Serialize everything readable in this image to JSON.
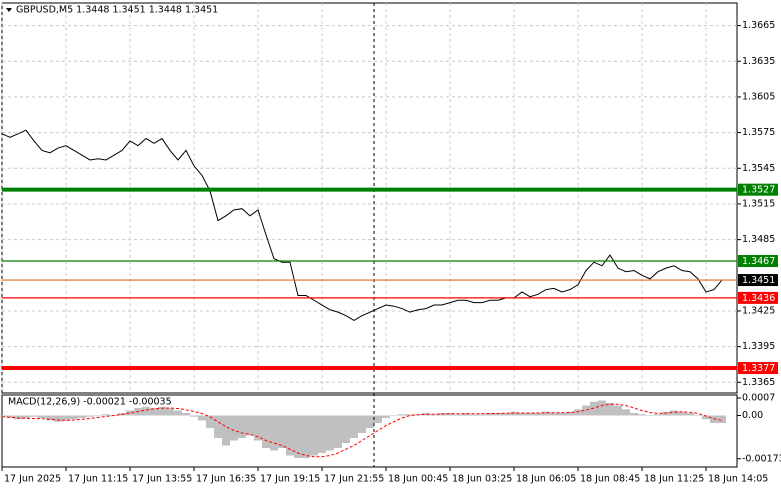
{
  "chart_data": [
    {
      "type": "line",
      "title": "GBPUSD,M5  1.3448 1.3451 1.3448 1.3451",
      "series": [
        {
          "color": "#000000",
          "values": [
            1.3574,
            1.3571,
            1.3574,
            1.3577,
            1.3568,
            1.356,
            1.3558,
            1.3562,
            1.3564,
            1.356,
            1.3556,
            1.3552,
            1.3553,
            1.3552,
            1.3556,
            1.356,
            1.3568,
            1.3564,
            1.357,
            1.3566,
            1.357,
            1.356,
            1.3552,
            1.356,
            1.3547,
            1.3539,
            1.3526,
            1.3501,
            1.3505,
            1.351,
            1.3511,
            1.3505,
            1.351,
            1.3489,
            1.3469,
            1.3466,
            1.3466,
            1.3438,
            1.3438,
            1.3434,
            1.343,
            1.3426,
            1.3424,
            1.3421,
            1.3417,
            1.3421,
            1.3424,
            1.3427,
            1.343,
            1.3429,
            1.3427,
            1.3424,
            1.3426,
            1.3427,
            1.343,
            1.343,
            1.3432,
            1.3434,
            1.3434,
            1.3432,
            1.3432,
            1.3434,
            1.3434,
            1.3436,
            1.3436,
            1.3441,
            1.3437,
            1.3439,
            1.3443,
            1.3444,
            1.3441,
            1.3443,
            1.3447,
            1.3459,
            1.3466,
            1.3463,
            1.3472,
            1.3461,
            1.3458,
            1.3459,
            1.3455,
            1.3452,
            1.3458,
            1.3461,
            1.3463,
            1.3459,
            1.3458,
            1.3452,
            1.3441,
            1.3443,
            1.3451
          ]
        }
      ],
      "levels": [
        {
          "value": 1.3527,
          "color": "#008000",
          "bold": true
        },
        {
          "value": 1.3467,
          "color": "#008000",
          "bold": false
        },
        {
          "value": 1.3451,
          "color": "#e07020",
          "label_color": "#000000",
          "bold": false
        },
        {
          "value": 1.3436,
          "color": "#ff0000",
          "bold": false
        },
        {
          "value": 1.3377,
          "color": "#ff0000",
          "bold": true
        }
      ],
      "xlim": [
        0,
        91.875
      ],
      "xticks": [
        {
          "value": 0,
          "label": "17 Jun 2025"
        },
        {
          "value": 8,
          "label": "17 Jun 11:15"
        },
        {
          "value": 16,
          "label": "17 Jun 13:55"
        },
        {
          "value": 24,
          "label": "17 Jun 16:35"
        },
        {
          "value": 32,
          "label": "17 Jun 19:15"
        },
        {
          "value": 40,
          "label": "17 Jun 21:55"
        },
        {
          "value": 48,
          "label": "18 Jun 00:45"
        },
        {
          "value": 56,
          "label": "18 Jun 03:25"
        },
        {
          "value": 64,
          "label": "18 Jun 06:05"
        },
        {
          "value": 72,
          "label": "18 Jun 08:45"
        },
        {
          "value": 80,
          "label": "18 Jun 11:25"
        },
        {
          "value": 88,
          "label": "18 Jun 14:05"
        }
      ],
      "ylim": [
        1.3356,
        1.3684
      ],
      "yticks": [
        1.3665,
        1.3635,
        1.3605,
        1.3575,
        1.3545,
        1.3515,
        1.3485,
        1.3425,
        1.3395,
        1.3365
      ],
      "grid": true
    },
    {
      "type": "macd",
      "title": "MACD(12,26,9) -0.00021 -0.00035",
      "series": [
        {
          "color": "#c0c0c0",
          "values": [
            -5e-05,
            -0.0001,
            -0.00015,
            -0.0001,
            -5e-05,
            -0.0001,
            -0.0002,
            -0.00025,
            -0.0002,
            -0.00015,
            -0.0001,
            -5e-05,
            0,
            5e-05,
            0,
            0.0001,
            0.0002,
            0.0003,
            0.00035,
            0.0003,
            0.00035,
            0.0003,
            0.0002,
            0.0001,
            -5e-05,
            -0.0002,
            -0.0005,
            -0.0009,
            -0.0012,
            -0.001,
            -0.0009,
            -0.0008,
            -0.001,
            -0.0013,
            -0.0014,
            -0.0013,
            -0.0016,
            -0.0017,
            -0.0017,
            -0.0016,
            -0.0015,
            -0.0014,
            -0.0013,
            -0.0011,
            -0.0009,
            -0.0007,
            -0.0005,
            -0.0003,
            -0.0001,
            0,
            5e-05,
            5e-05,
            5e-05,
            0.0001,
            5e-05,
            0.0001,
            0.0001,
            5e-05,
            0.0001,
            5e-05,
            5e-05,
            0.0001,
            0.0001,
            0.0001,
            0.00015,
            0.0001,
            0.0001,
            0.0001,
            0.00015,
            0.0001,
            0.0001,
            0.00015,
            0.00025,
            0.0004,
            0.00055,
            0.0006,
            0.0005,
            0.0004,
            0.00025,
            0.0001,
            5e-05,
            0,
            5e-05,
            0.00015,
            0.0002,
            0.00015,
            0.0001,
            0,
            -0.00015,
            -0.0003,
            -0.0003
          ]
        },
        {
          "color": "#ff0000",
          "values": [
            -5e-05,
            -7e-05,
            -0.0001,
            -0.00012,
            -0.00012,
            -0.00013,
            -0.00015,
            -0.00018,
            -0.0002,
            -0.00018,
            -0.00015,
            -0.00012,
            -8e-05,
            -4e-05,
            0,
            4e-05,
            0.0001,
            0.00016,
            0.00022,
            0.00026,
            0.00029,
            0.0003,
            0.00028,
            0.00023,
            0.00016,
            8e-05,
            -5e-05,
            -0.00025,
            -0.00045,
            -0.0006,
            -0.0007,
            -0.00075,
            -0.00085,
            -0.001,
            -0.0011,
            -0.0012,
            -0.00135,
            -0.0015,
            -0.0016,
            -0.00165,
            -0.00165,
            -0.0016,
            -0.0015,
            -0.00135,
            -0.0012,
            -0.001,
            -0.0008,
            -0.0006,
            -0.0004,
            -0.00025,
            -0.0001,
            0,
            3e-05,
            5e-05,
            5e-05,
            6e-05,
            7e-05,
            7e-05,
            7e-05,
            7e-05,
            7e-05,
            8e-05,
            8e-05,
            9e-05,
            0.0001,
            0.0001,
            0.0001,
            0.0001,
            0.00011,
            0.00011,
            0.00011,
            0.00012,
            0.00015,
            0.00022,
            0.0003,
            0.0004,
            0.00045,
            0.00045,
            0.0004,
            0.0003,
            0.0002,
            0.00012,
            8e-05,
            0.0001,
            0.00013,
            0.00015,
            0.00013,
            8e-05,
            -2e-05,
            -0.00013,
            -0.0002
          ]
        }
      ],
      "xlim": [
        0,
        91.875
      ],
      "ylim": [
        -0.00206,
        0.00082
      ],
      "yticks": [
        0.0007,
        {
          "value": 0,
          "label": "0.00"
        },
        -0.00173
      ]
    }
  ]
}
